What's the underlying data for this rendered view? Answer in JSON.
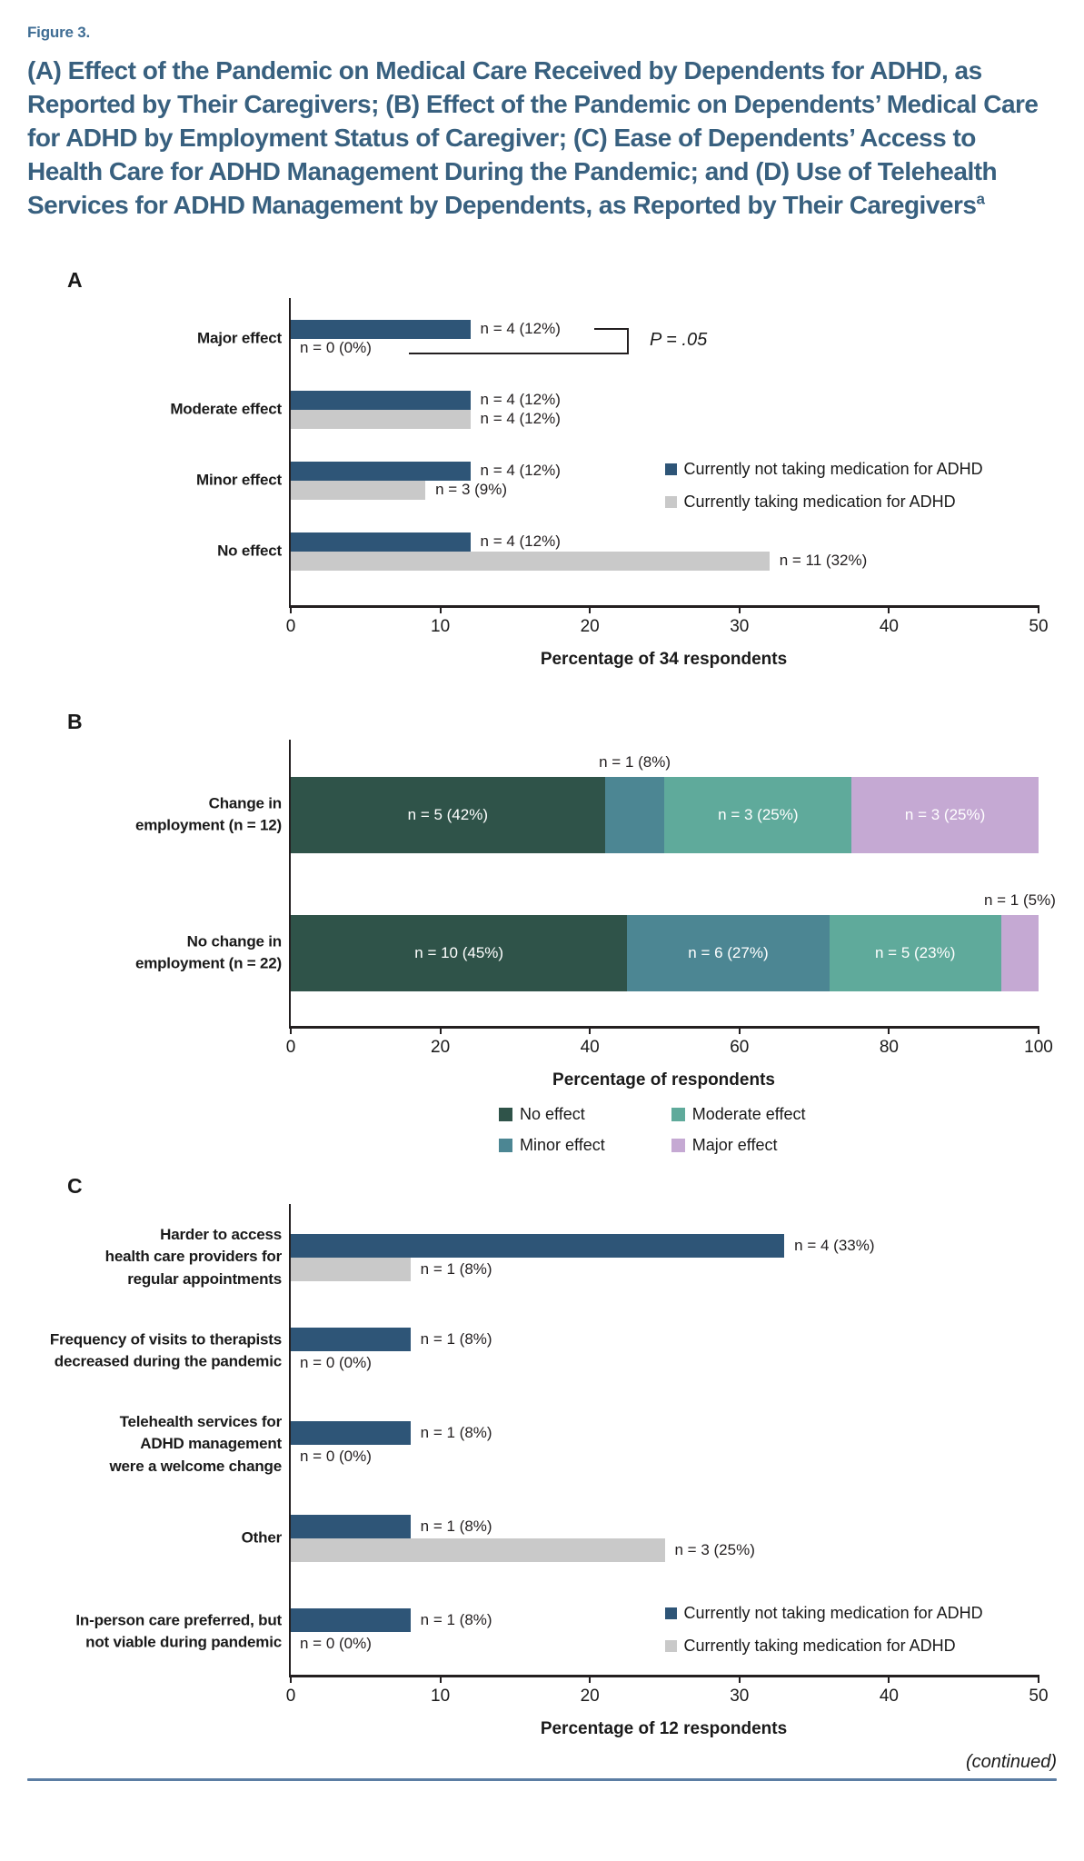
{
  "figure_label": "Figure 3.",
  "title": "(A) Effect of the Pandemic on Medical Care Received by Dependents for ADHD, as Reported by Their Caregivers; (B) Effect of the Pandemic on Dependents’ Medical Care for ADHD by Employment Status of Caregiver; (C) Ease of Dependents’ Access to Health Care for ADHD Management During the Pandemic; and (D) Use of Telehealth Services for ADHD Management by Dependents, as Reported by Their Caregivers",
  "title_superscript": "a",
  "continued_note": "(continued)",
  "colors": {
    "not_taking_med": "#2e5577",
    "taking_med": "#c9c9c9",
    "no_effect": "#2f5349",
    "minor_effect": "#4c8693",
    "moderate_effect": "#5faa9b",
    "major_effect": "#c5a9d3",
    "axis": "#231f20",
    "title_text": "#38607f",
    "figure_label_text": "#3f6d94",
    "rule": "#5b7da3"
  },
  "chart_data": [
    {
      "id": "A",
      "panel_label": "A",
      "type": "bar",
      "orientation": "horizontal-grouped",
      "title": "",
      "xlabel": "Percentage of 34 respondents",
      "xlim": [
        0,
        50
      ],
      "xticks": [
        0,
        10,
        20,
        30,
        40,
        50
      ],
      "grid": false,
      "legend_position": "middle-right",
      "categories": [
        "Major effect",
        "Moderate effect",
        "Minor effect",
        "No effect"
      ],
      "series": [
        {
          "name": "Currently not taking medication for ADHD",
          "color_key": "not_taking_med",
          "values": [
            12,
            12,
            12,
            12
          ],
          "labels": [
            "n = 4 (12%)",
            "n = 4 (12%)",
            "n = 4 (12%)",
            "n = 4 (12%)"
          ]
        },
        {
          "name": "Currently taking medication for ADHD",
          "color_key": "taking_med",
          "values": [
            0,
            12,
            9,
            32
          ],
          "labels": [
            "n = 0 (0%)",
            "n = 4 (12%)",
            "n = 3 (9%)",
            "n = 11 (32%)"
          ]
        }
      ],
      "annotation": "P = .05"
    },
    {
      "id": "B",
      "panel_label": "B",
      "type": "stacked-bar",
      "title": "",
      "xlabel": "Percentage of respondents",
      "xlim": [
        0,
        100
      ],
      "xticks": [
        0,
        20,
        40,
        60,
        80,
        100
      ],
      "grid": false,
      "legend_position": "below",
      "series_colors": {
        "No effect": "no_effect",
        "Minor effect": "minor_effect",
        "Moderate effect": "moderate_effect",
        "Major effect": "major_effect"
      },
      "legend": [
        "No effect",
        "Minor effect",
        "Moderate effect",
        "Major effect"
      ],
      "categories": [
        [
          "Change in",
          "employment (n = 12)"
        ],
        [
          "No change in",
          "employment (n = 22)"
        ]
      ],
      "rows": [
        {
          "segments": [
            {
              "series": "No effect",
              "value": 42,
              "label": "n = 5 (42%)",
              "label_position": "inside"
            },
            {
              "series": "Minor effect",
              "value": 8,
              "label": "n = 1 (8%)",
              "label_position": "above"
            },
            {
              "series": "Moderate effect",
              "value": 25,
              "label": "n = 3 (25%)",
              "label_position": "inside"
            },
            {
              "series": "Major effect",
              "value": 25,
              "label": "n = 3 (25%)",
              "label_position": "inside"
            }
          ]
        },
        {
          "segments": [
            {
              "series": "No effect",
              "value": 45,
              "label": "n = 10 (45%)",
              "label_position": "inside"
            },
            {
              "series": "Minor effect",
              "value": 27,
              "label": "n = 6 (27%)",
              "label_position": "inside"
            },
            {
              "series": "Moderate effect",
              "value": 23,
              "label": "n = 5 (23%)",
              "label_position": "inside"
            },
            {
              "series": "Major effect",
              "value": 5,
              "label": "n = 1 (5%)",
              "label_position": "above"
            }
          ]
        }
      ]
    },
    {
      "id": "C",
      "panel_label": "C",
      "type": "bar",
      "orientation": "horizontal-grouped",
      "title": "",
      "xlabel": "Percentage of 12 respondents",
      "xlim": [
        0,
        50
      ],
      "xticks": [
        0,
        10,
        20,
        30,
        40,
        50
      ],
      "grid": false,
      "legend_position": "bottom-right",
      "categories": [
        [
          "Harder to access",
          "health care providers for",
          "regular appointments"
        ],
        [
          "Frequency of visits to therapists",
          "decreased during the pandemic"
        ],
        [
          "Telehealth services for",
          "ADHD management",
          "were a welcome change"
        ],
        [
          "Other"
        ],
        [
          "In-person care preferred, but",
          "not viable during pandemic"
        ]
      ],
      "series": [
        {
          "name": "Currently not taking medication for ADHD",
          "color_key": "not_taking_med",
          "values": [
            33,
            8,
            8,
            8,
            8
          ],
          "labels": [
            "n = 4 (33%)",
            "n = 1 (8%)",
            "n = 1 (8%)",
            "n = 1 (8%)",
            "n = 1 (8%)"
          ]
        },
        {
          "name": "Currently taking medication for ADHD",
          "color_key": "taking_med",
          "values": [
            8,
            0,
            0,
            25,
            0
          ],
          "labels": [
            "n = 1 (8%)",
            "n = 0 (0%)",
            "n = 0 (0%)",
            "n = 3 (25%)",
            "n = 0 (0%)"
          ]
        }
      ]
    }
  ]
}
